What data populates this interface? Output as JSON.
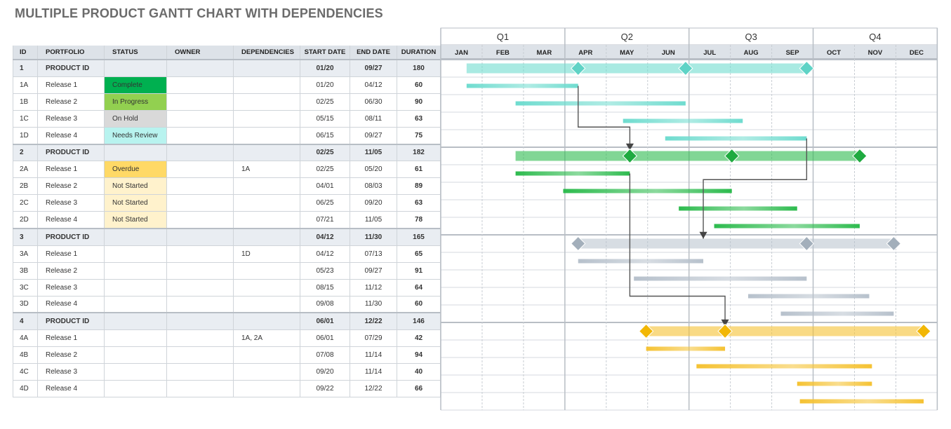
{
  "title": "MULTIPLE PRODUCT GANTT CHART WITH DEPENDENCIES",
  "columns": {
    "id": "ID",
    "portfolio": "PORTFOLIO",
    "status": "STATUS",
    "owner": "OWNER",
    "dependencies": "DEPENDENCIES",
    "start": "START DATE",
    "end": "END DATE",
    "duration": "DURATION"
  },
  "status_colors": {
    "Complete": "#00b050",
    "In Progress": "#92d050",
    "On Hold": "#d9d9d9",
    "Needs Review": "#b8f3ef",
    "Overdue": "#ffd966",
    "Not Started": "#fff2cc"
  },
  "rows": [
    {
      "id": "1",
      "portfolio": "PRODUCT ID",
      "status": "",
      "owner": "",
      "deps": "",
      "start": "01/20",
      "end": "09/27",
      "duration": "180",
      "product": true
    },
    {
      "id": "1A",
      "portfolio": "Release 1",
      "status": "Complete",
      "owner": "",
      "deps": "",
      "start": "01/20",
      "end": "04/12",
      "duration": "60"
    },
    {
      "id": "1B",
      "portfolio": "Release 2",
      "status": "In Progress",
      "owner": "",
      "deps": "",
      "start": "02/25",
      "end": "06/30",
      "duration": "90"
    },
    {
      "id": "1C",
      "portfolio": "Release 3",
      "status": "On Hold",
      "owner": "",
      "deps": "",
      "start": "05/15",
      "end": "08/11",
      "duration": "63"
    },
    {
      "id": "1D",
      "portfolio": "Release 4",
      "status": "Needs Review",
      "owner": "",
      "deps": "",
      "start": "06/15",
      "end": "09/27",
      "duration": "75"
    },
    {
      "id": "2",
      "portfolio": "PRODUCT ID",
      "status": "",
      "owner": "",
      "deps": "",
      "start": "02/25",
      "end": "11/05",
      "duration": "182",
      "product": true
    },
    {
      "id": "2A",
      "portfolio": "Release 1",
      "status": "Overdue",
      "owner": "",
      "deps": "1A",
      "start": "02/25",
      "end": "05/20",
      "duration": "61"
    },
    {
      "id": "2B",
      "portfolio": "Release 2",
      "status": "Not Started",
      "owner": "",
      "deps": "",
      "start": "04/01",
      "end": "08/03",
      "duration": "89"
    },
    {
      "id": "2C",
      "portfolio": "Release 3",
      "status": "Not Started",
      "owner": "",
      "deps": "",
      "start": "06/25",
      "end": "09/20",
      "duration": "63"
    },
    {
      "id": "2D",
      "portfolio": "Release 4",
      "status": "Not Started",
      "owner": "",
      "deps": "",
      "start": "07/21",
      "end": "11/05",
      "duration": "78"
    },
    {
      "id": "3",
      "portfolio": "PRODUCT ID",
      "status": "",
      "owner": "",
      "deps": "",
      "start": "04/12",
      "end": "11/30",
      "duration": "165",
      "product": true
    },
    {
      "id": "3A",
      "portfolio": "Release 1",
      "status": "",
      "owner": "",
      "deps": "1D",
      "start": "04/12",
      "end": "07/13",
      "duration": "65"
    },
    {
      "id": "3B",
      "portfolio": "Release 2",
      "status": "",
      "owner": "",
      "deps": "",
      "start": "05/23",
      "end": "09/27",
      "duration": "91"
    },
    {
      "id": "3C",
      "portfolio": "Release 3",
      "status": "",
      "owner": "",
      "deps": "",
      "start": "08/15",
      "end": "11/12",
      "duration": "64"
    },
    {
      "id": "3D",
      "portfolio": "Release 4",
      "status": "",
      "owner": "",
      "deps": "",
      "start": "09/08",
      "end": "11/30",
      "duration": "60"
    },
    {
      "id": "4",
      "portfolio": "PRODUCT ID",
      "status": "",
      "owner": "",
      "deps": "",
      "start": "06/01",
      "end": "12/22",
      "duration": "146",
      "product": true
    },
    {
      "id": "4A",
      "portfolio": "Release 1",
      "status": "",
      "owner": "",
      "deps": "1A, 2A",
      "start": "06/01",
      "end": "07/29",
      "duration": "42"
    },
    {
      "id": "4B",
      "portfolio": "Release 2",
      "status": "",
      "owner": "",
      "deps": "",
      "start": "07/08",
      "end": "11/14",
      "duration": "94"
    },
    {
      "id": "4C",
      "portfolio": "Release 3",
      "status": "",
      "owner": "",
      "deps": "",
      "start": "09/20",
      "end": "11/14",
      "duration": "40"
    },
    {
      "id": "4D",
      "portfolio": "Release 4",
      "status": "",
      "owner": "",
      "deps": "",
      "start": "09/22",
      "end": "12/22",
      "duration": "66"
    }
  ],
  "chart_data": {
    "type": "gantt",
    "quarters": [
      "Q1",
      "Q2",
      "Q3",
      "Q4"
    ],
    "months": [
      "JAN",
      "FEB",
      "MAR",
      "APR",
      "MAY",
      "JUN",
      "JUL",
      "AUG",
      "SEP",
      "OCT",
      "NOV",
      "DEC"
    ],
    "groups": [
      {
        "id": "1",
        "color": "#6fdccf",
        "diamond_color": "#5fd3c6",
        "summary": {
          "start": "01/20",
          "end": "09/27"
        },
        "milestones": [
          "04/12",
          "06/30",
          "09/27"
        ],
        "tasks": [
          {
            "id": "1A",
            "start": "01/20",
            "end": "04/12"
          },
          {
            "id": "1B",
            "start": "02/25",
            "end": "06/30"
          },
          {
            "id": "1C",
            "start": "05/15",
            "end": "08/11"
          },
          {
            "id": "1D",
            "start": "06/15",
            "end": "09/27"
          }
        ]
      },
      {
        "id": "2",
        "color": "#2dbb4e",
        "diamond_color": "#1faa40",
        "summary": {
          "start": "02/25",
          "end": "11/05"
        },
        "milestones": [
          "05/20",
          "08/03",
          "11/05"
        ],
        "tasks": [
          {
            "id": "2A",
            "start": "02/25",
            "end": "05/20"
          },
          {
            "id": "2B",
            "start": "04/01",
            "end": "08/03"
          },
          {
            "id": "2C",
            "start": "06/25",
            "end": "09/20"
          },
          {
            "id": "2D",
            "start": "07/21",
            "end": "11/05"
          }
        ]
      },
      {
        "id": "3",
        "color": "#b7c1cc",
        "diamond_color": "#a3afbb",
        "summary": {
          "start": "04/12",
          "end": "11/30"
        },
        "milestones": [
          "04/12",
          "09/27",
          "11/30"
        ],
        "tasks": [
          {
            "id": "3A",
            "start": "04/12",
            "end": "07/13"
          },
          {
            "id": "3B",
            "start": "05/23",
            "end": "09/27"
          },
          {
            "id": "3C",
            "start": "08/15",
            "end": "11/12"
          },
          {
            "id": "3D",
            "start": "09/08",
            "end": "11/30"
          }
        ]
      },
      {
        "id": "4",
        "color": "#f5c232",
        "diamond_color": "#f2b705",
        "summary": {
          "start": "06/01",
          "end": "12/22"
        },
        "milestones": [
          "06/01",
          "07/29",
          "12/22"
        ],
        "tasks": [
          {
            "id": "4A",
            "start": "06/01",
            "end": "07/29"
          },
          {
            "id": "4B",
            "start": "07/08",
            "end": "11/14"
          },
          {
            "id": "4C",
            "start": "09/20",
            "end": "11/14"
          },
          {
            "id": "4D",
            "start": "09/22",
            "end": "12/22"
          }
        ]
      }
    ],
    "dependencies": [
      {
        "from": "1A",
        "to": "2A"
      },
      {
        "from": "1D",
        "to": "3A"
      },
      {
        "from": "2A",
        "to": "4A"
      }
    ]
  }
}
